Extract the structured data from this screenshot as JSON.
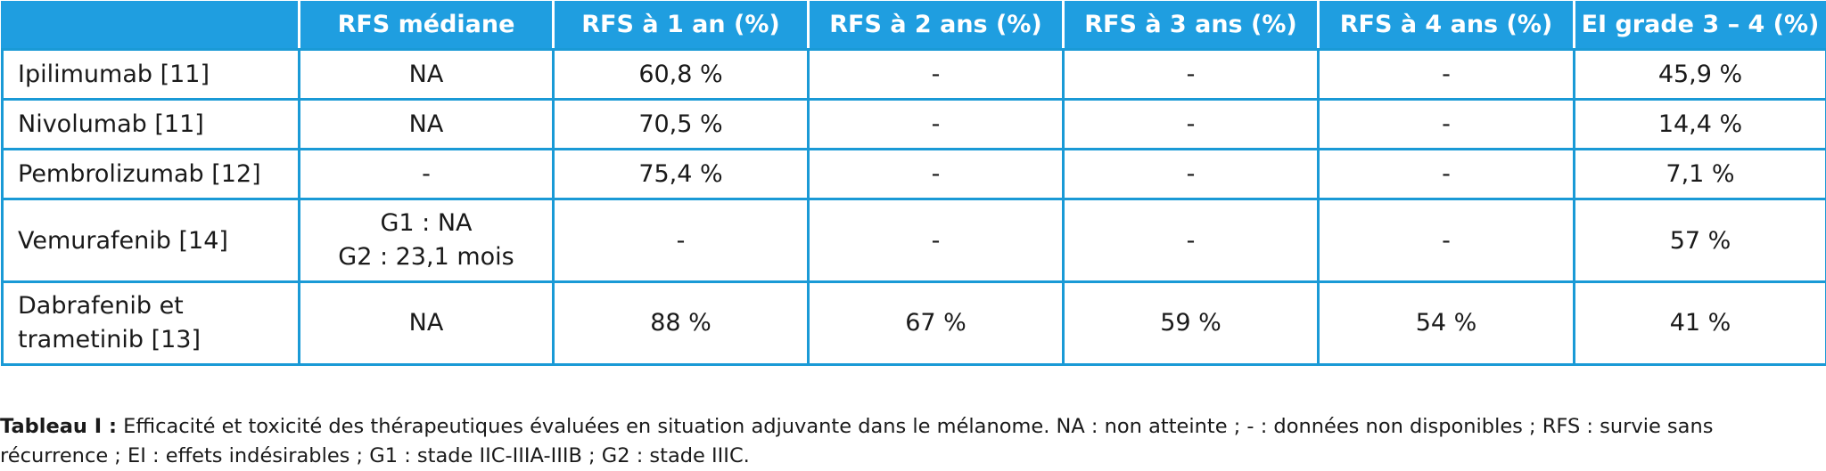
{
  "table": {
    "headers": [
      "",
      "RFS médiane",
      "RFS à 1 an (%)",
      "RFS à 2 ans (%)",
      "RFS à 3 ans (%)",
      "RFS à 4 ans (%)",
      "EI grade 3 – 4 (%)"
    ],
    "rows": [
      {
        "drug": [
          "Ipilimumab [11]"
        ],
        "median": [
          "NA"
        ],
        "y1": "60,8 %",
        "y2": "-",
        "y3": "-",
        "y4": "-",
        "ei": "45,9 %"
      },
      {
        "drug": [
          "Nivolumab [11]"
        ],
        "median": [
          "NA"
        ],
        "y1": "70,5 %",
        "y2": "-",
        "y3": "-",
        "y4": "-",
        "ei": "14,4 %"
      },
      {
        "drug": [
          "Pembrolizumab [12]"
        ],
        "median": [
          "-"
        ],
        "y1": "75,4 %",
        "y2": "-",
        "y3": "-",
        "y4": "-",
        "ei": "7,1 %"
      },
      {
        "drug": [
          "Vemurafenib [14]"
        ],
        "median": [
          "G1 : NA",
          "G2 : 23,1 mois"
        ],
        "y1": "-",
        "y2": "-",
        "y3": "-",
        "y4": "-",
        "ei": "57 %"
      },
      {
        "drug": [
          "Dabrafenib et",
          "trametinib [13]"
        ],
        "median": [
          "NA"
        ],
        "y1": "88 %",
        "y2": "67 %",
        "y3": "59 %",
        "y4": "54 %",
        "ei": "41 %"
      }
    ]
  },
  "caption": {
    "label": "Tableau I :",
    "line1": " Efficacité et toxicité des thérapeutiques évaluées en situation adjuvante dans le mélanome. NA : non atteinte ; - : données non disponibles ; RFS : survie sans",
    "line2": "récurrence ; EI : effets indésirables ; G1 : stade IIC-IIIA-IIIB ; G2 : stade IIIC."
  }
}
